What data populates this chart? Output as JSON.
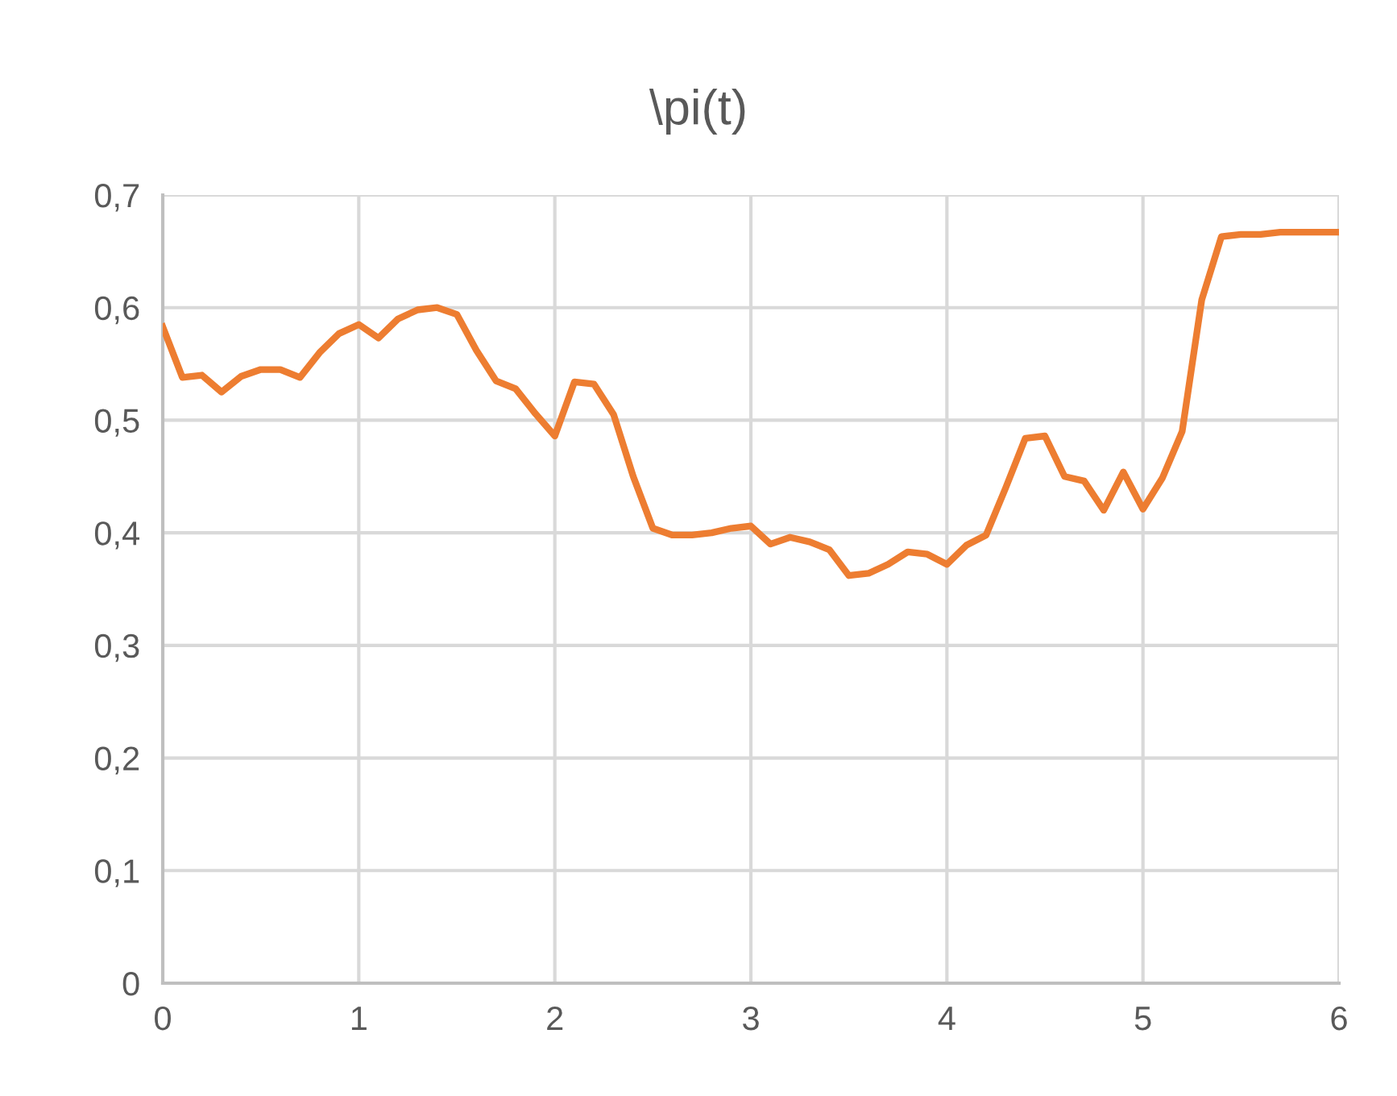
{
  "chart_data": {
    "type": "line",
    "title": "\\pi(t)",
    "x": [
      0,
      0.1,
      0.2,
      0.3,
      0.4,
      0.5,
      0.6,
      0.7,
      0.8,
      0.9,
      1.0,
      1.1,
      1.2,
      1.3,
      1.4,
      1.5,
      1.6,
      1.7,
      1.8,
      1.9,
      2.0,
      2.1,
      2.2,
      2.3,
      2.4,
      2.5,
      2.6,
      2.7,
      2.8,
      2.9,
      3.0,
      3.1,
      3.2,
      3.3,
      3.4,
      3.5,
      3.6,
      3.7,
      3.8,
      3.9,
      4.0,
      4.1,
      4.2,
      4.3,
      4.4,
      4.5,
      4.6,
      4.7,
      4.8,
      4.9,
      5.0,
      5.1,
      5.2,
      5.3,
      5.4,
      5.5,
      5.6,
      5.7,
      5.8,
      5.9,
      6.0
    ],
    "series": [
      {
        "color": "#ed7d31",
        "values": [
          0.583,
          0.538,
          0.54,
          0.525,
          0.539,
          0.545,
          0.545,
          0.538,
          0.56,
          0.577,
          0.585,
          0.573,
          0.59,
          0.598,
          0.6,
          0.594,
          0.562,
          0.535,
          0.528,
          0.506,
          0.486,
          0.534,
          0.532,
          0.505,
          0.45,
          0.404,
          0.398,
          0.398,
          0.4,
          0.404,
          0.406,
          0.39,
          0.396,
          0.392,
          0.385,
          0.362,
          0.364,
          0.372,
          0.383,
          0.381,
          0.372,
          0.389,
          0.398,
          0.44,
          0.484,
          0.486,
          0.45,
          0.446,
          0.42,
          0.454,
          0.421,
          0.449,
          0.49,
          0.607,
          0.663,
          0.665,
          0.665,
          0.667,
          0.667,
          0.667,
          0.667
        ]
      }
    ],
    "xlim": [
      0,
      6
    ],
    "xticks": [
      0,
      1,
      2,
      3,
      4,
      5,
      6
    ],
    "ylim": [
      0,
      0.7
    ],
    "yticks": [
      0,
      {
        "value": 0.1,
        "label": "0,1"
      },
      {
        "value": 0.2,
        "label": "0,2"
      },
      {
        "value": 0.3,
        "label": "0,3"
      },
      {
        "value": 0.4,
        "label": "0,4"
      },
      {
        "value": 0.5,
        "label": "0,5"
      },
      {
        "value": 0.6,
        "label": "0,6"
      },
      {
        "value": 0.7,
        "label": "0,7"
      }
    ],
    "grid": true,
    "marker": "none",
    "line_style": "solid"
  }
}
